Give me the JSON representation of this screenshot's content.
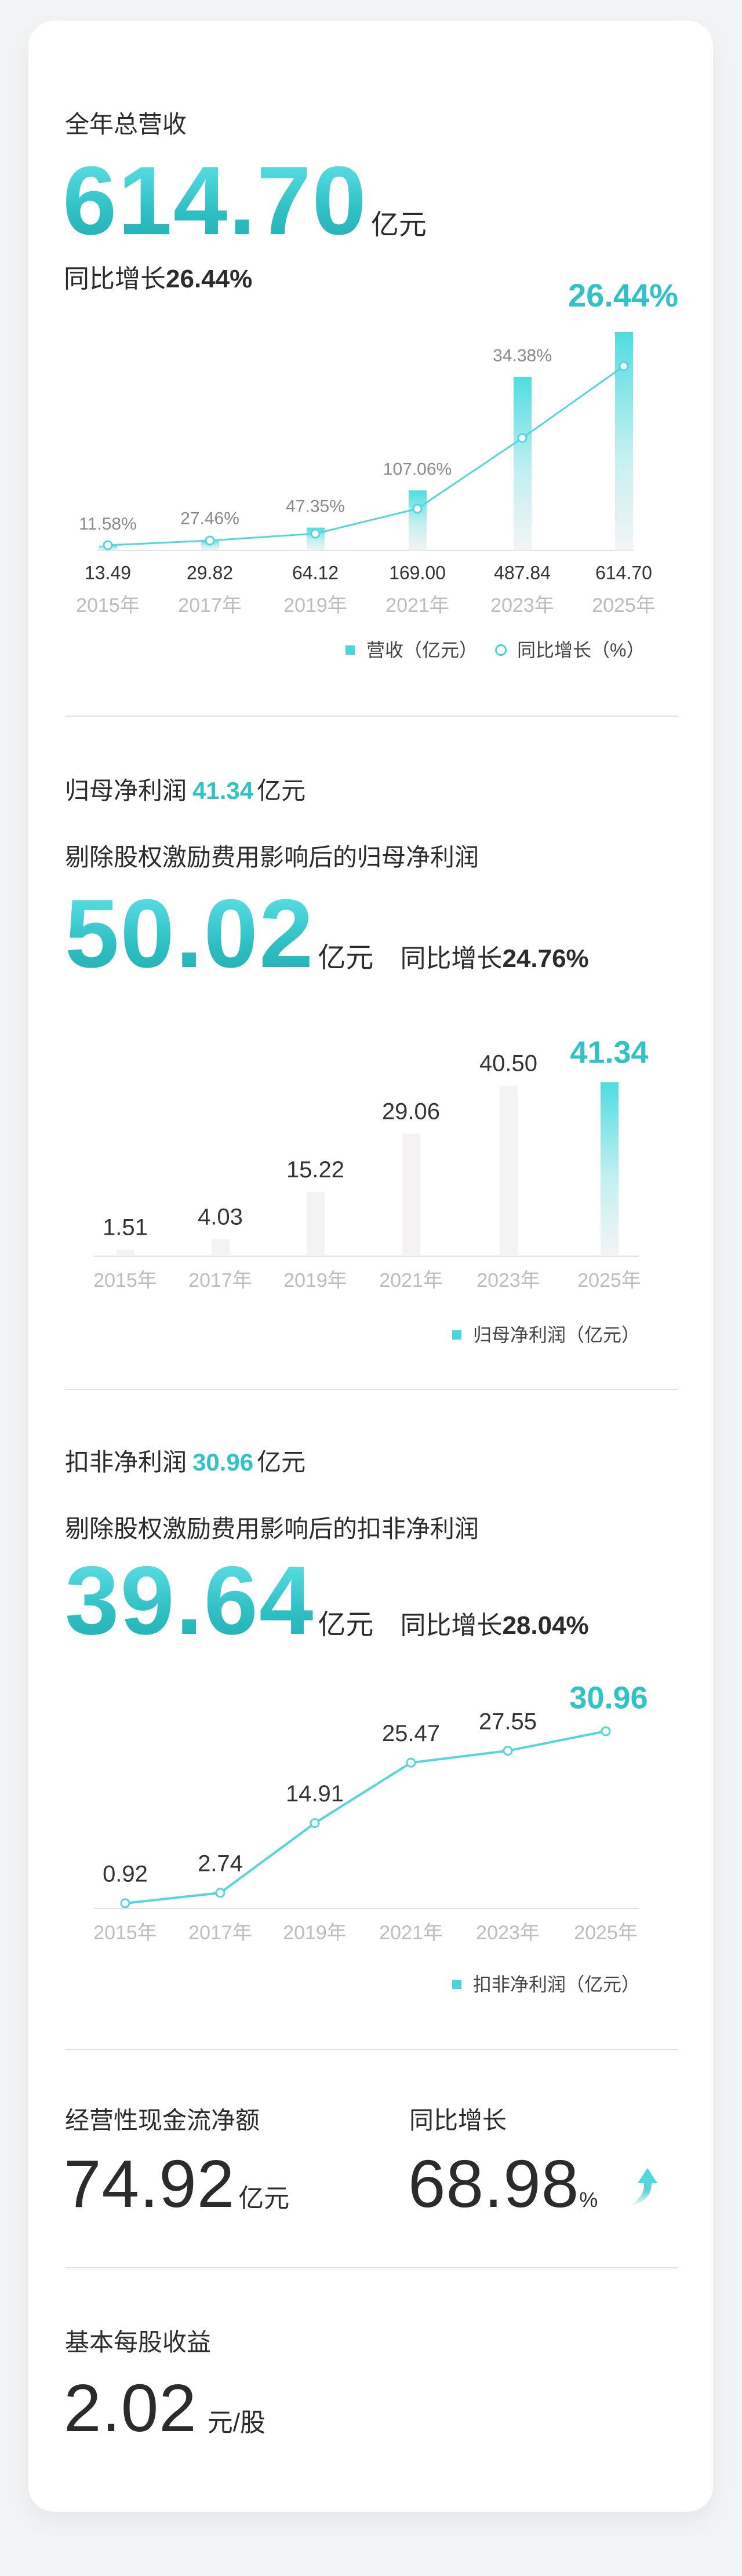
{
  "revenue": {
    "title": "全年总营收",
    "value": "614.70",
    "unit": "亿元",
    "growth_label": "同比增长",
    "growth_value": "26.44%"
  },
  "net_profit": {
    "title": "归母净利润",
    "value": "41.34",
    "unit": "亿元",
    "adjusted_title": "剔除股权激励费用影响后的归母净利润",
    "adjusted_value": "50.02",
    "adjusted_unit": "亿元",
    "growth_label": "同比增长",
    "growth_value": "24.76%"
  },
  "deducted_profit": {
    "title": "扣非净利润",
    "value": "30.96",
    "unit": "亿元",
    "adjusted_title": "剔除股权激励费用影响后的扣非净利润",
    "adjusted_value": "39.64",
    "adjusted_unit": "亿元",
    "growth_label": "同比增长",
    "growth_value": "28.04%"
  },
  "cash_flow": {
    "title": "经营性现金流净额",
    "value": "74.92",
    "unit": "亿元",
    "growth_label": "同比增长",
    "growth_value": "68.98",
    "growth_unit": "%",
    "trend_icon": "arrow-up-icon"
  },
  "eps": {
    "title": "基本每股收益",
    "value": "2.02",
    "unit": "元/股"
  },
  "colors": {
    "accent": "#2fc3c8",
    "bar_light": "#4fdde0",
    "bar_muted": "#f4f2f2",
    "line": "#55d6dc",
    "year_label": "#bdbdbd"
  },
  "chart_data": [
    {
      "type": "bar+line",
      "categories": [
        "2015年",
        "2017年",
        "2019年",
        "2021年",
        "2023年",
        "2025年"
      ],
      "series": [
        {
          "name": "营收（亿元）",
          "type": "bar",
          "values": [
            13.49,
            29.82,
            64.12,
            169.0,
            487.84,
            614.7
          ],
          "labels": [
            "13.49",
            "29.82",
            "64.12",
            "169.00",
            "487.84",
            "614.70"
          ]
        },
        {
          "name": "同比增长（%）",
          "type": "line",
          "values": [
            11.58,
            27.46,
            47.35,
            107.06,
            34.38,
            26.44
          ],
          "labels": [
            "11.58%",
            "27.46%",
            "47.35%",
            "107.06%",
            "34.38%",
            "26.44%"
          ]
        }
      ],
      "legend": [
        "营收（亿元）",
        "同比增长（%）"
      ],
      "legend_position": "bottom-right",
      "grid": false
    },
    {
      "type": "bar",
      "categories": [
        "2015年",
        "2017年",
        "2019年",
        "2021年",
        "2023年",
        "2025年"
      ],
      "series": [
        {
          "name": "归母净利润（亿元）",
          "values": [
            1.51,
            4.03,
            15.22,
            29.06,
            40.5,
            41.34
          ],
          "labels": [
            "1.51",
            "4.03",
            "15.22",
            "29.06",
            "40.50",
            "41.34"
          ]
        }
      ],
      "legend": [
        "归母净利润（亿元）"
      ],
      "legend_position": "bottom-right",
      "grid": false
    },
    {
      "type": "line",
      "categories": [
        "2015年",
        "2017年",
        "2019年",
        "2021年",
        "2023年",
        "2025年"
      ],
      "series": [
        {
          "name": "扣非净利润（亿元）",
          "values": [
            0.92,
            2.74,
            14.91,
            25.47,
            27.55,
            30.96
          ],
          "labels": [
            "0.92",
            "2.74",
            "14.91",
            "25.47",
            "27.55",
            "30.96"
          ]
        }
      ],
      "legend": [
        "扣非净利润（亿元）"
      ],
      "legend_position": "bottom-right",
      "grid": false
    }
  ]
}
